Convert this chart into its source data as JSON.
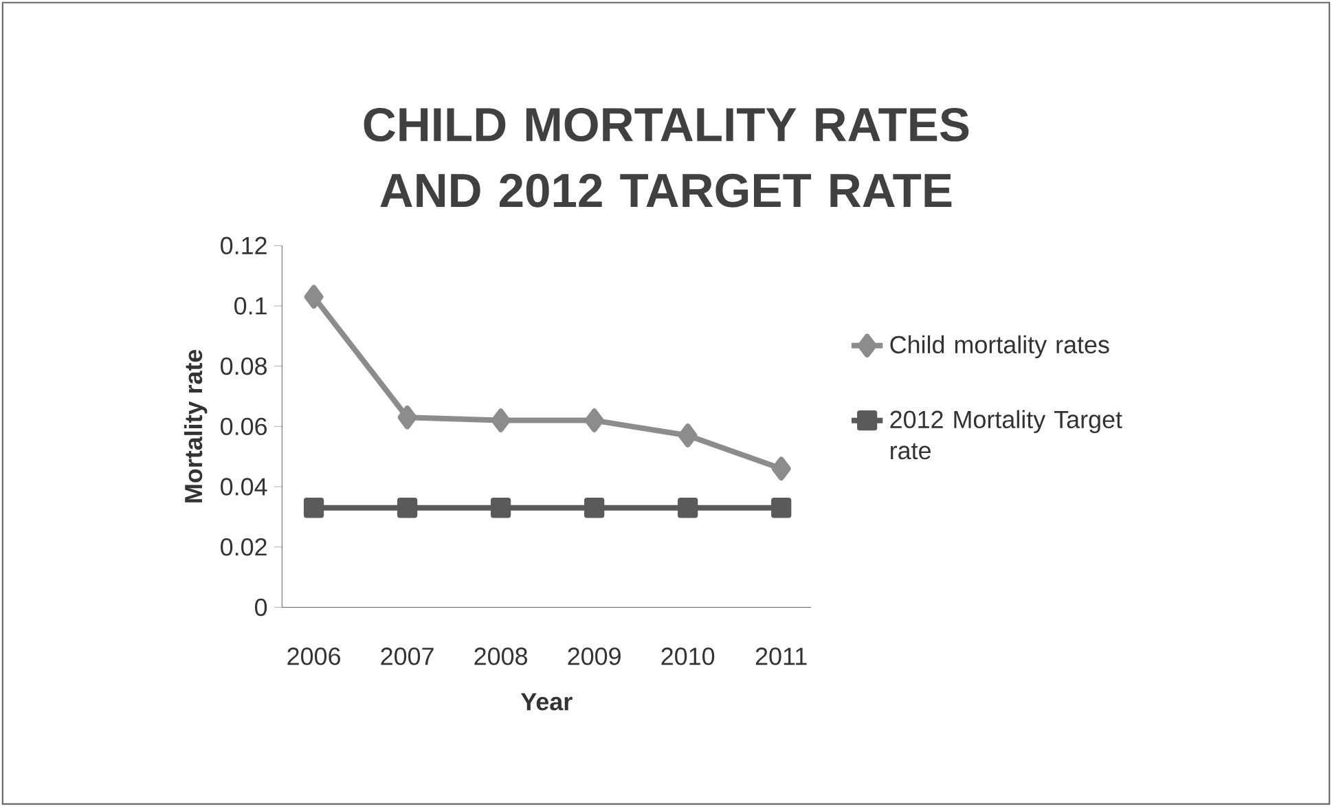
{
  "chart_data": {
    "type": "line",
    "title": "CHILD MORTALITY RATES AND 2012 TARGET RATE",
    "xlabel": "Year",
    "ylabel": "Mortality rate",
    "categories": [
      "2006",
      "2007",
      "2008",
      "2009",
      "2010",
      "2011"
    ],
    "series": [
      {
        "name": "Child mortality rates",
        "color": "#8c8c8c",
        "marker": "diamond",
        "values": [
          0.103,
          0.063,
          0.062,
          0.062,
          0.057,
          0.046
        ]
      },
      {
        "name": "2012 Mortality Target rate",
        "color": "#5a5a5a",
        "marker": "square",
        "values": [
          0.033,
          0.033,
          0.033,
          0.033,
          0.033,
          0.033
        ]
      }
    ],
    "ylim": [
      0,
      0.12
    ],
    "yticks": [
      0,
      0.02,
      0.04,
      0.06,
      0.08,
      0.1,
      0.12
    ],
    "legend": "right",
    "line_style": "solid"
  }
}
